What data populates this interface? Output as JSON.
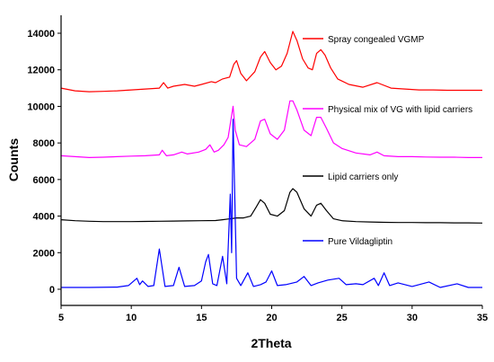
{
  "chart_data": {
    "type": "line",
    "title": "",
    "xlabel": "2Theta",
    "ylabel": "Counts",
    "xlim": [
      5,
      35
    ],
    "ylim": [
      0,
      15000
    ],
    "xticks": [
      5,
      10,
      15,
      20,
      25,
      30,
      35
    ],
    "yticks": [
      0,
      2000,
      4000,
      6000,
      8000,
      10000,
      12000,
      14000
    ],
    "grid": false,
    "legend": "inline labels beside each curve",
    "series": [
      {
        "name": "Spray congealed VGMP",
        "color": "#ff0000",
        "x": [
          5,
          6,
          7,
          8,
          9,
          10,
          11,
          12,
          12.3,
          12.6,
          13,
          13.8,
          14.5,
          15,
          15.7,
          16,
          16.5,
          17,
          17.3,
          17.5,
          17.8,
          18.2,
          18.8,
          19.2,
          19.5,
          19.9,
          20.3,
          20.7,
          21.1,
          21.5,
          21.8,
          22.2,
          22.6,
          22.9,
          23.2,
          23.5,
          23.8,
          24.2,
          24.7,
          25.5,
          26.5,
          27.5,
          28.5,
          29.5,
          30.5,
          31.5,
          32.5,
          33.5,
          35
        ],
        "values": [
          11000,
          10850,
          10800,
          10820,
          10850,
          10900,
          10950,
          11000,
          11300,
          11000,
          11100,
          11200,
          11100,
          11200,
          11350,
          11300,
          11500,
          11600,
          12300,
          12500,
          11800,
          11400,
          11900,
          12700,
          13000,
          12400,
          12000,
          12200,
          12900,
          14100,
          13600,
          12600,
          12100,
          12000,
          12900,
          13100,
          12800,
          12100,
          11500,
          11200,
          11050,
          11300,
          11000,
          10950,
          10900,
          10900,
          10880,
          10880,
          10880
        ]
      },
      {
        "name": "Physical mix of VG with lipid carriers",
        "color": "#ff00ff",
        "x": [
          5,
          6,
          7,
          8,
          9,
          10,
          11,
          12,
          12.2,
          12.5,
          13,
          13.6,
          14,
          14.8,
          15.3,
          15.6,
          15.9,
          16.2,
          16.6,
          16.9,
          17.1,
          17.25,
          17.4,
          17.7,
          18.2,
          18.8,
          19.2,
          19.5,
          19.9,
          20.4,
          20.9,
          21.3,
          21.5,
          21.8,
          22.3,
          22.8,
          23.2,
          23.5,
          23.9,
          24.4,
          25,
          26,
          27,
          27.5,
          28,
          29,
          30,
          31,
          32,
          33,
          34,
          35
        ],
        "values": [
          7300,
          7250,
          7200,
          7220,
          7250,
          7280,
          7300,
          7350,
          7600,
          7300,
          7350,
          7500,
          7400,
          7500,
          7650,
          7900,
          7500,
          7600,
          7900,
          8300,
          9300,
          10000,
          8700,
          7900,
          7800,
          8200,
          9200,
          9300,
          8500,
          8200,
          8700,
          10300,
          10300,
          9800,
          8700,
          8400,
          9400,
          9400,
          8800,
          8000,
          7700,
          7450,
          7350,
          7500,
          7300,
          7250,
          7250,
          7230,
          7220,
          7220,
          7200,
          7200
        ]
      },
      {
        "name": "Lipid carriers only",
        "color": "#000000",
        "x": [
          5,
          6,
          7,
          8,
          9,
          10,
          11,
          12,
          13,
          14,
          15,
          16,
          16.5,
          17,
          17.5,
          18,
          18.5,
          18.9,
          19.2,
          19.5,
          19.9,
          20.4,
          20.9,
          21.3,
          21.5,
          21.8,
          22.3,
          22.8,
          23.2,
          23.5,
          23.9,
          24.4,
          25,
          26,
          27,
          28,
          29,
          30,
          31,
          32,
          33,
          34,
          35
        ],
        "values": [
          3800,
          3750,
          3720,
          3700,
          3700,
          3700,
          3710,
          3720,
          3730,
          3740,
          3750,
          3760,
          3800,
          3850,
          3900,
          3900,
          4000,
          4500,
          4900,
          4700,
          4100,
          4000,
          4300,
          5300,
          5500,
          5300,
          4400,
          4000,
          4600,
          4700,
          4300,
          3850,
          3750,
          3700,
          3680,
          3660,
          3650,
          3650,
          3640,
          3640,
          3630,
          3630,
          3620
        ]
      },
      {
        "name": "Pure Vildagliptin",
        "color": "#0000ff",
        "x": [
          5,
          7,
          9,
          9.8,
          10.4,
          10.6,
          10.8,
          11.2,
          11.6,
          12,
          12.4,
          13,
          13.4,
          13.8,
          14.5,
          15,
          15.3,
          15.5,
          15.8,
          16.1,
          16.5,
          16.8,
          17.05,
          17.15,
          17.25,
          17.35,
          17.5,
          17.8,
          18.3,
          18.7,
          19.2,
          19.6,
          20,
          20.4,
          21,
          21.8,
          22.3,
          22.8,
          23.3,
          24,
          24.8,
          25.3,
          26,
          26.5,
          27.3,
          27.6,
          28,
          28.4,
          29,
          30,
          31.2,
          32,
          33.2,
          34,
          35
        ],
        "values": [
          100,
          100,
          120,
          200,
          600,
          250,
          450,
          150,
          200,
          2200,
          150,
          200,
          1200,
          150,
          200,
          450,
          1500,
          1900,
          300,
          200,
          1800,
          300,
          5200,
          2000,
          9300,
          5700,
          600,
          200,
          900,
          150,
          250,
          400,
          1000,
          200,
          250,
          400,
          700,
          200,
          350,
          500,
          600,
          250,
          300,
          250,
          600,
          200,
          900,
          200,
          350,
          150,
          400,
          100,
          300,
          100,
          100
        ]
      }
    ]
  }
}
